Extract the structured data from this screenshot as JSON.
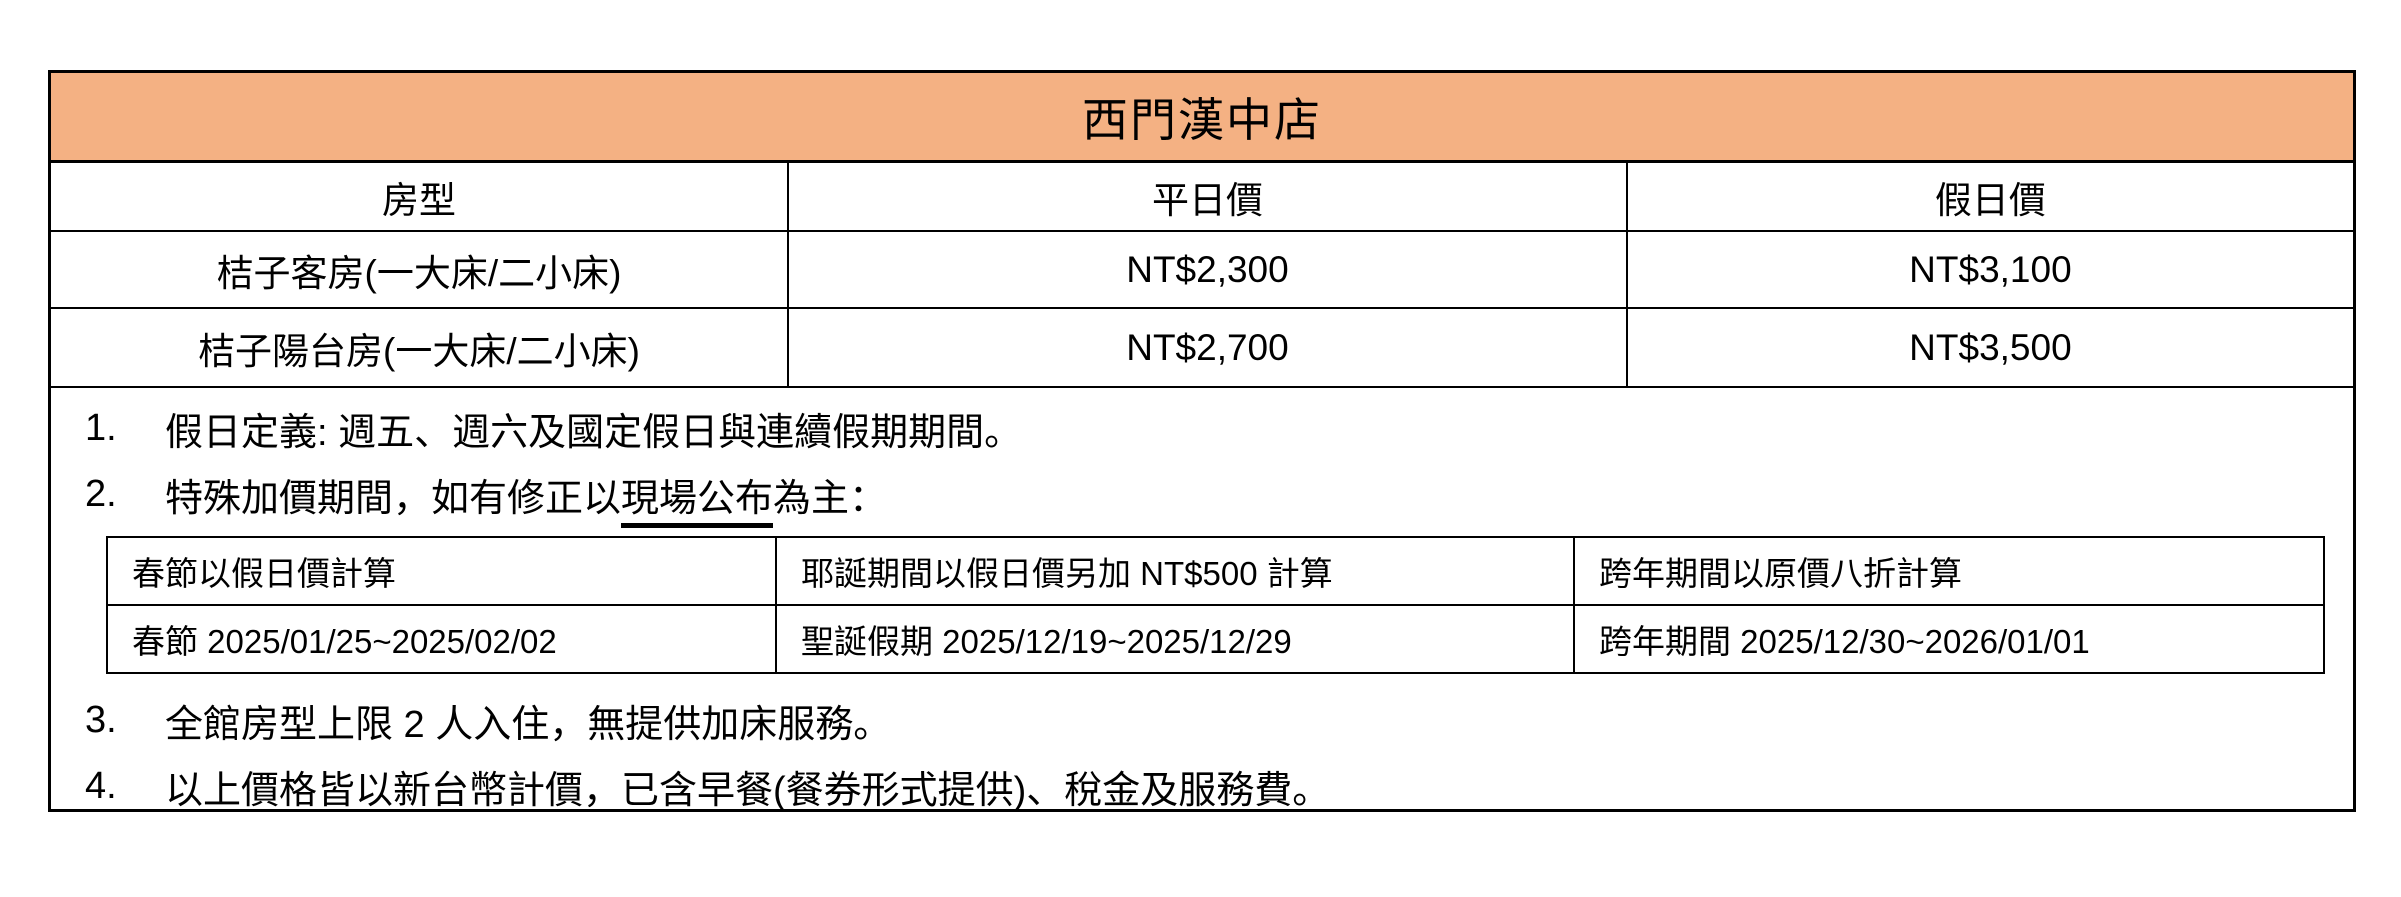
{
  "title": "西門漢中店",
  "accent_color": "#F4B183",
  "price_table": {
    "headers": [
      "房型",
      "平日價",
      "假日價"
    ],
    "rows": [
      {
        "room": "桔子客房(一大床/二小床)",
        "weekday": "NT$2,300",
        "holiday": "NT$3,100"
      },
      {
        "room": "桔子陽台房(一大床/二小床)",
        "weekday": "NT$2,700",
        "holiday": "NT$3,500"
      }
    ]
  },
  "notes": {
    "item1": {
      "num": "1.",
      "text": "假日定義: 週五、週六及國定假日與連續假期期間。"
    },
    "item2": {
      "num": "2.",
      "text_before": "特殊加價期間，如有修正以",
      "underlined": "現場公布",
      "text_after": "為主："
    },
    "item3": {
      "num": "3.",
      "text": "全館房型上限 2 人入住，無提供加床服務。"
    },
    "item4": {
      "num": "4.",
      "text": "以上價格皆以新台幣計價，已含早餐(餐券形式提供)、稅金及服務費。"
    }
  },
  "special_table": {
    "rows": [
      {
        "spring": "春節以假日價計算",
        "christmas": "耶誕期間以假日價另加 NT$500 計算",
        "newyear": "跨年期間以原價八折計算"
      },
      {
        "spring": "春節 2025/01/25~2025/02/02",
        "christmas": "聖誕假期 2025/12/19~2025/12/29",
        "newyear": "跨年期間 2025/12/30~2026/01/01"
      }
    ]
  }
}
